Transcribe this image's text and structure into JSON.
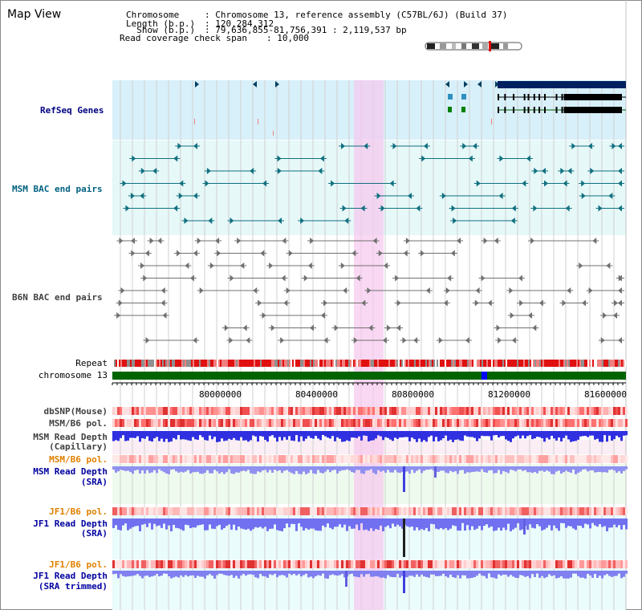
{
  "page": {
    "title": "Map View",
    "info": {
      "chromosome_key": "Chromosome",
      "chromosome_value": ": Chromosome 13, reference assembly (C57BL/6J) (Build 37)",
      "length_key": "Length (b.p.)",
      "length_value": ": 120,284,312",
      "show_key": "  Show (b.p.)",
      "show_value": ": 79,636,855-81,756,391 : 2,119,537 bp",
      "coverage_key": "Read coverage check span",
      "coverage_value": ": 10,000"
    }
  },
  "tracks": {
    "refseq": "RefSeq Genes",
    "msm_bac": "MSM BAC end pairs",
    "b6n_bac": "B6N BAC end pairs",
    "repeat": "Repeat",
    "chromosome": "chromosome 13",
    "dbsnp": "dbSNP(Mouse)",
    "msm_b6_pol": "MSM/B6 pol.",
    "msm_depth_cap_1": "MSM Read Depth",
    "msm_depth_cap_2": "(Capillary)",
    "msm_b6_pol_2": "MSM/B6 pol.",
    "msm_depth_sra_1": "MSM Read Depth",
    "msm_depth_sra_2": "(SRA)",
    "jf1_b6_pol_1": "JF1/B6 pol.",
    "jf1_depth_sra_1": "JF1 Read Depth",
    "jf1_depth_sra_2": "(SRA)",
    "jf1_b6_pol_2": "JF1/B6 pol.",
    "jf1_depth_trim_1": "JF1 Read Depth",
    "jf1_depth_trim_2": "(SRA trimmed)"
  },
  "axis": {
    "ticks": [
      "80000000",
      "80400000",
      "80800000",
      "81200000",
      "81600000"
    ]
  },
  "colors": {
    "refseq_label": "#000080",
    "msm_label": "#006080",
    "b6n_label": "#404040",
    "orange_label": "#e08000",
    "blue_label": "#0000a0",
    "highlight": "#f8d0f0",
    "chrom_green": "#006400",
    "depth_blue": "#3030e0"
  }
}
